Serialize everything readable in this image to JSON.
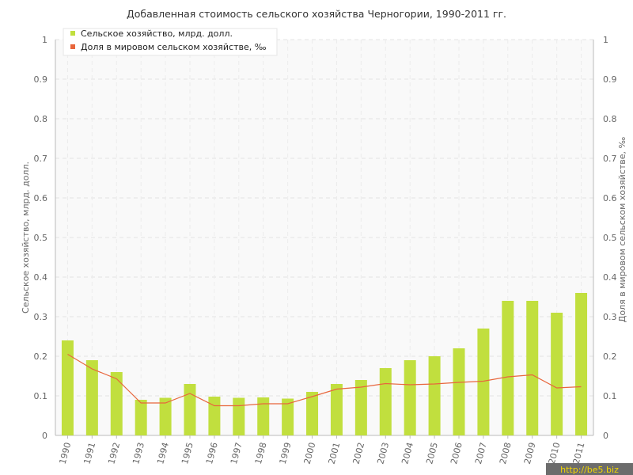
{
  "chart_data": {
    "type": "bar",
    "title": "Добавленная стоимость сельского хозяйства Черногории, 1990-2011 гг.",
    "categories": [
      "1990",
      "1991",
      "1992",
      "1993",
      "1994",
      "1995",
      "1996",
      "1997",
      "1998",
      "1999",
      "2000",
      "2001",
      "2002",
      "2003",
      "2004",
      "2005",
      "2006",
      "2007",
      "2008",
      "2009",
      "2010",
      "2011"
    ],
    "series": [
      {
        "name": "Сельское хозяйство, млрд. долл.",
        "type": "bar",
        "axis": "left",
        "color": "#c1df3e",
        "values": [
          0.24,
          0.19,
          0.16,
          0.09,
          0.095,
          0.13,
          0.098,
          0.095,
          0.096,
          0.093,
          0.11,
          0.13,
          0.14,
          0.17,
          0.19,
          0.2,
          0.22,
          0.27,
          0.34,
          0.34,
          0.31,
          0.36
        ]
      },
      {
        "name": "Доля в мировом сельском хозяйстве, ‰",
        "type": "line",
        "axis": "right",
        "color": "#e8663c",
        "values": [
          0.205,
          0.168,
          0.143,
          0.082,
          0.082,
          0.106,
          0.075,
          0.075,
          0.08,
          0.08,
          0.098,
          0.117,
          0.122,
          0.131,
          0.128,
          0.13,
          0.134,
          0.137,
          0.148,
          0.153,
          0.12,
          0.123
        ]
      }
    ],
    "ylabel_left": "Сельское хозяйство, млрд. долл.",
    "ylabel_right": "Доля в мировом сельском хозяйстве, ‰",
    "ylim": [
      0,
      1
    ],
    "yticks": [
      "0",
      "0.1",
      "0.2",
      "0.3",
      "0.4",
      "0.5",
      "0.6",
      "0.7",
      "0.8",
      "0.9",
      "1"
    ],
    "grid": true,
    "legend_position": "top-left"
  },
  "watermark": "http://be5.biz"
}
